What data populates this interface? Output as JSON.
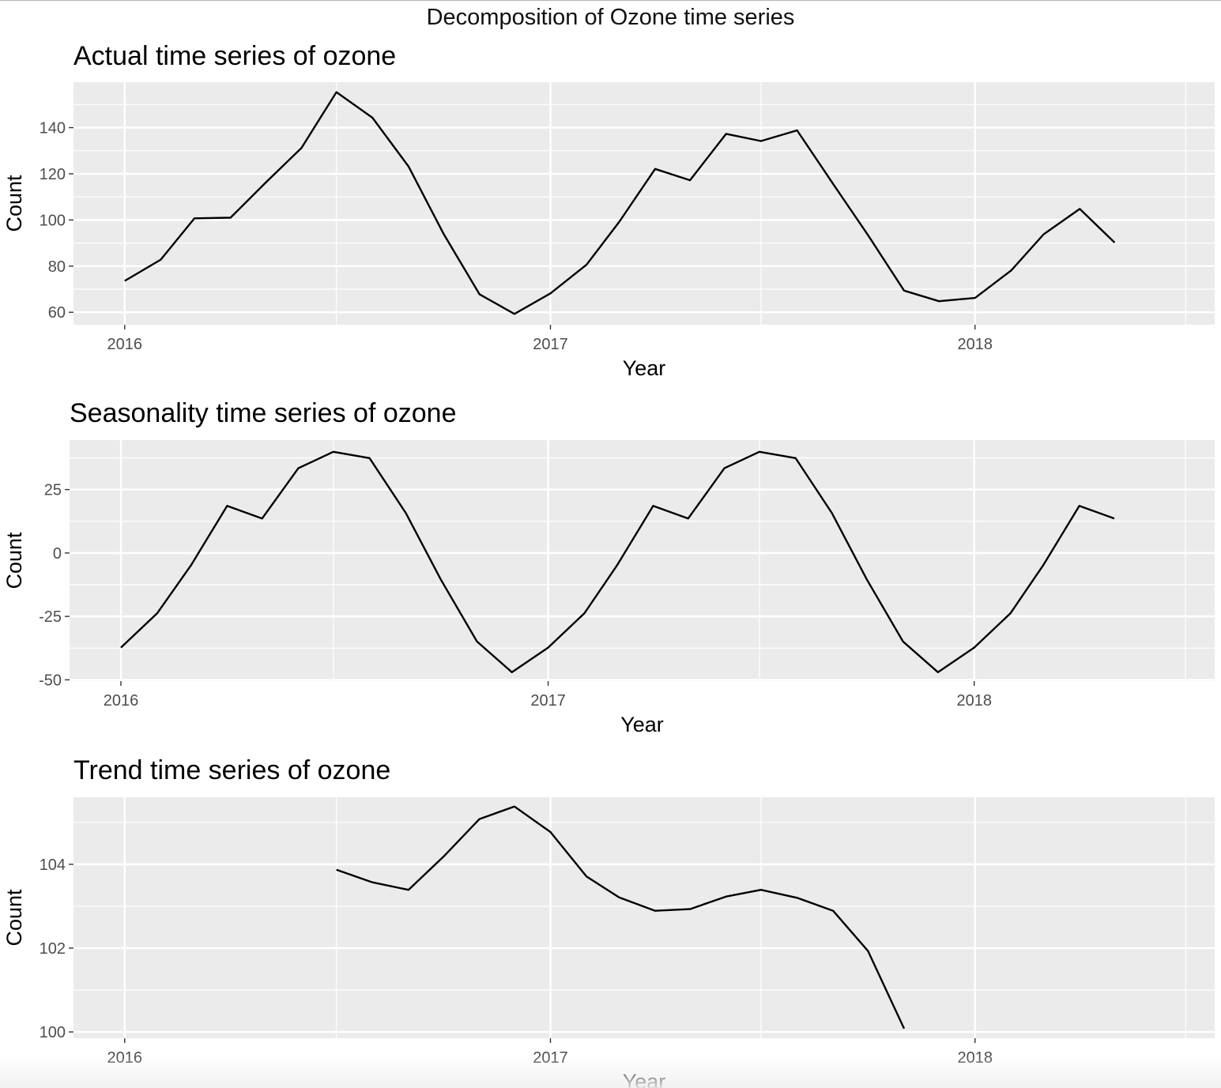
{
  "page_title": "Decomposition of Ozone time series",
  "chart_data": [
    {
      "type": "line",
      "title": "Actual time series of ozone",
      "xlabel": "Year",
      "ylabel": "Count",
      "x_ticks": [
        "2016",
        "2017",
        "2018"
      ],
      "y_ticks": [
        60,
        80,
        100,
        120,
        140
      ],
      "ylim": [
        54.6,
        159.7
      ],
      "xlim": [
        "2015-11-18",
        "2018-07-26"
      ],
      "grid": true,
      "x": [
        "2016-01",
        "2016-02",
        "2016-03",
        "2016-04",
        "2016-05",
        "2016-06",
        "2016-07",
        "2016-08",
        "2016-09",
        "2016-10",
        "2016-11",
        "2016-12",
        "2017-01",
        "2017-02",
        "2017-03",
        "2017-04",
        "2017-05",
        "2017-06",
        "2017-07",
        "2017-08",
        "2017-09",
        "2017-10",
        "2017-11",
        "2017-12",
        "2018-01",
        "2018-02",
        "2018-03",
        "2018-04",
        "2018-05"
      ],
      "values": [
        73.6,
        82.8,
        100.7,
        101.0,
        116.1,
        131.2,
        155.4,
        144.3,
        123.2,
        94.1,
        67.8,
        59.3,
        68.2,
        80.6,
        99.1,
        122.1,
        117.2,
        137.3,
        134.2,
        138.8,
        115.6,
        93.4,
        69.4,
        64.8,
        66.2,
        78.1,
        93.8,
        104.8,
        90.2
      ]
    },
    {
      "type": "line",
      "title": "Seasonality time series of ozone",
      "xlabel": "Year",
      "ylabel": "Count",
      "x_ticks": [
        "2016",
        "2017",
        "2018"
      ],
      "y_ticks": [
        -50,
        -25,
        0,
        25
      ],
      "y_tick_labels": [
        "-50",
        "-25",
        "0",
        "25"
      ],
      "ylim": [
        -50.5,
        44.5
      ],
      "xlim": [
        "2015-11-18",
        "2018-07-26"
      ],
      "grid": true,
      "x": [
        "2016-01",
        "2016-02",
        "2016-03",
        "2016-04",
        "2016-05",
        "2016-06",
        "2016-07",
        "2016-08",
        "2016-09",
        "2016-10",
        "2016-11",
        "2016-12",
        "2017-01",
        "2017-02",
        "2017-03",
        "2017-04",
        "2017-05",
        "2017-06",
        "2017-07",
        "2017-08",
        "2017-09",
        "2017-10",
        "2017-11",
        "2017-12",
        "2018-01",
        "2018-02",
        "2018-03",
        "2018-04",
        "2018-05"
      ],
      "values": [
        -37.3,
        -23.8,
        -4.9,
        18.6,
        13.6,
        33.4,
        39.9,
        37.4,
        15.8,
        -10.4,
        -34.9,
        -47.0,
        -37.3,
        -23.8,
        -4.9,
        18.6,
        13.6,
        33.4,
        39.9,
        37.4,
        15.8,
        -10.4,
        -34.9,
        -47.0,
        -37.3,
        -23.8,
        -4.9,
        18.6,
        13.6
      ]
    },
    {
      "type": "line",
      "title": "Trend time series of ozone",
      "xlabel": "Year",
      "ylabel": "Count",
      "x_ticks": [
        "2016",
        "2017",
        "2018"
      ],
      "y_ticks": [
        100,
        102,
        104
      ],
      "ylim": [
        99.85,
        105.6
      ],
      "xlim": [
        "2015-11-18",
        "2018-07-26"
      ],
      "grid": true,
      "x": [
        "2016-07",
        "2016-08",
        "2016-09",
        "2016-10",
        "2016-11",
        "2016-12",
        "2017-01",
        "2017-02",
        "2017-03",
        "2017-04",
        "2017-05",
        "2017-06",
        "2017-07",
        "2017-08",
        "2017-09",
        "2017-10",
        "2017-11"
      ],
      "values": [
        103.87,
        103.57,
        103.39,
        104.18,
        105.08,
        105.38,
        104.77,
        103.71,
        103.21,
        102.89,
        102.93,
        103.23,
        103.39,
        103.2,
        102.89,
        101.93,
        100.08
      ]
    }
  ]
}
